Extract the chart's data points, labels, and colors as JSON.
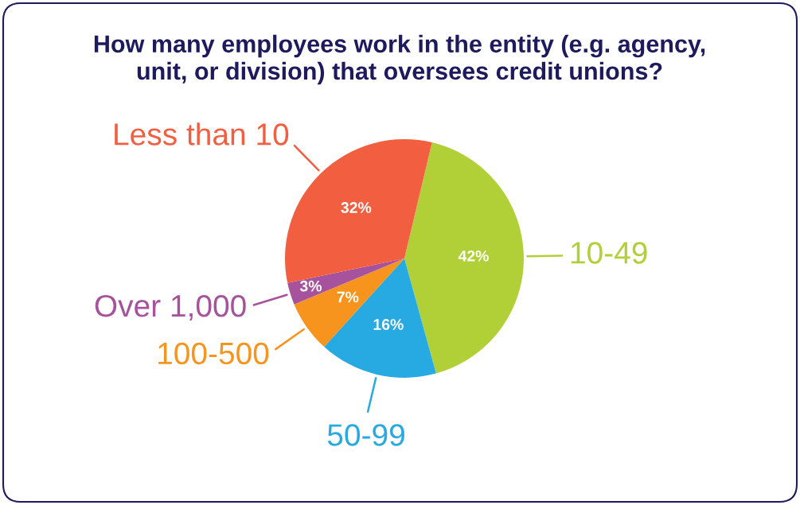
{
  "chart_data": {
    "type": "pie",
    "title": "How many employees work in the entity (e.g. agency,\nunit, or division) that oversees credit unions?",
    "categories": [
      "10-49",
      "50-99",
      "100-500",
      "Over 1,000",
      "Less than 10"
    ],
    "values": [
      42,
      16,
      7,
      3,
      32
    ],
    "value_labels": [
      "42%",
      "16%",
      "7%",
      "3%",
      "32%"
    ],
    "colors": [
      "#b1cf37",
      "#27a9e1",
      "#f7941d",
      "#a6529c",
      "#f15f40"
    ],
    "legend": false
  }
}
